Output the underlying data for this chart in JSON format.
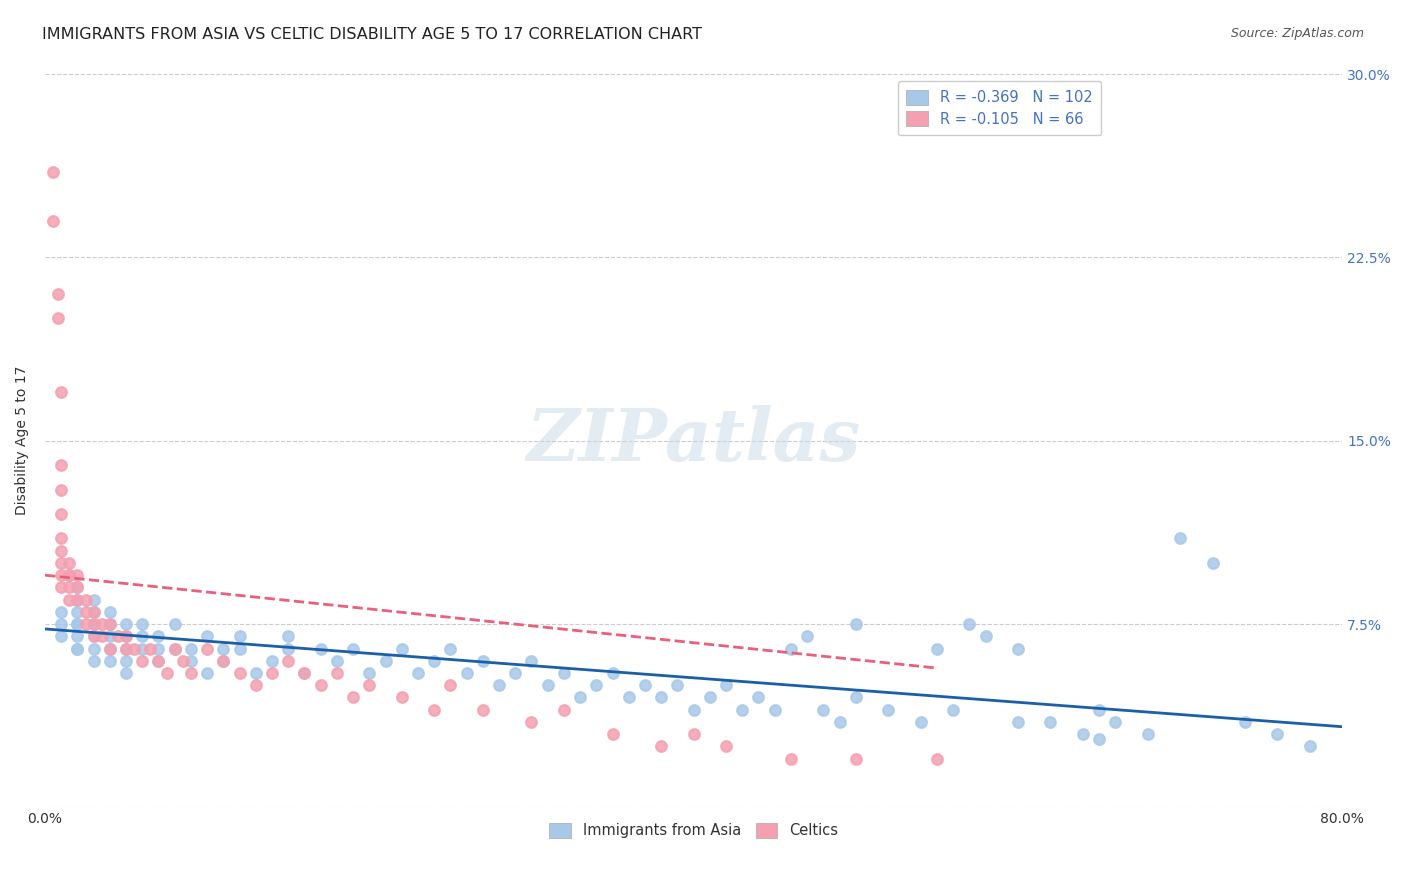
{
  "title": "IMMIGRANTS FROM ASIA VS CELTIC DISABILITY AGE 5 TO 17 CORRELATION CHART",
  "source": "Source: ZipAtlas.com",
  "xlabel": "",
  "ylabel": "Disability Age 5 to 17",
  "xlim": [
    0.0,
    0.8
  ],
  "ylim": [
    0.0,
    0.3
  ],
  "xticks": [
    0.0,
    0.1,
    0.2,
    0.3,
    0.4,
    0.5,
    0.6,
    0.7,
    0.8
  ],
  "xticklabels": [
    "0.0%",
    "",
    "",
    "",
    "",
    "",
    "",
    "",
    "80.0%"
  ],
  "yticks": [
    0.0,
    0.075,
    0.15,
    0.225,
    0.3
  ],
  "yticklabels": [
    "",
    "7.5%",
    "15.0%",
    "22.5%",
    "30.0%"
  ],
  "legend_labels": [
    "Immigrants from Asia",
    "Celtics"
  ],
  "blue_R": "-0.369",
  "blue_N": "102",
  "pink_R": "-0.105",
  "pink_N": "66",
  "blue_color": "#a8c8e8",
  "pink_color": "#f4a0b0",
  "trend_blue": "#1a5fa8",
  "trend_pink": "#e8607a",
  "watermark": "ZIPatlas",
  "watermark_color": "#c8d8e8",
  "blue_scatter_x": [
    0.01,
    0.01,
    0.01,
    0.02,
    0.02,
    0.02,
    0.02,
    0.02,
    0.02,
    0.02,
    0.02,
    0.03,
    0.03,
    0.03,
    0.03,
    0.03,
    0.03,
    0.04,
    0.04,
    0.04,
    0.04,
    0.04,
    0.05,
    0.05,
    0.05,
    0.05,
    0.05,
    0.06,
    0.06,
    0.06,
    0.07,
    0.07,
    0.07,
    0.08,
    0.08,
    0.09,
    0.09,
    0.1,
    0.1,
    0.11,
    0.11,
    0.12,
    0.12,
    0.13,
    0.14,
    0.15,
    0.15,
    0.16,
    0.17,
    0.18,
    0.19,
    0.2,
    0.21,
    0.22,
    0.23,
    0.24,
    0.25,
    0.26,
    0.27,
    0.28,
    0.29,
    0.3,
    0.31,
    0.32,
    0.33,
    0.34,
    0.35,
    0.36,
    0.37,
    0.38,
    0.39,
    0.4,
    0.41,
    0.42,
    0.43,
    0.44,
    0.45,
    0.46,
    0.47,
    0.48,
    0.49,
    0.5,
    0.52,
    0.54,
    0.56,
    0.57,
    0.58,
    0.6,
    0.62,
    0.64,
    0.65,
    0.66,
    0.68,
    0.7,
    0.72,
    0.74,
    0.76,
    0.78,
    0.5,
    0.55,
    0.6,
    0.65
  ],
  "blue_scatter_y": [
    0.07,
    0.075,
    0.08,
    0.065,
    0.07,
    0.075,
    0.08,
    0.085,
    0.09,
    0.075,
    0.065,
    0.07,
    0.075,
    0.065,
    0.06,
    0.08,
    0.085,
    0.07,
    0.065,
    0.075,
    0.06,
    0.08,
    0.07,
    0.065,
    0.075,
    0.06,
    0.055,
    0.07,
    0.065,
    0.075,
    0.065,
    0.06,
    0.07,
    0.065,
    0.075,
    0.065,
    0.06,
    0.07,
    0.055,
    0.065,
    0.06,
    0.07,
    0.065,
    0.055,
    0.06,
    0.065,
    0.07,
    0.055,
    0.065,
    0.06,
    0.065,
    0.055,
    0.06,
    0.065,
    0.055,
    0.06,
    0.065,
    0.055,
    0.06,
    0.05,
    0.055,
    0.06,
    0.05,
    0.055,
    0.045,
    0.05,
    0.055,
    0.045,
    0.05,
    0.045,
    0.05,
    0.04,
    0.045,
    0.05,
    0.04,
    0.045,
    0.04,
    0.065,
    0.07,
    0.04,
    0.035,
    0.045,
    0.04,
    0.035,
    0.04,
    0.075,
    0.07,
    0.065,
    0.035,
    0.03,
    0.04,
    0.035,
    0.03,
    0.11,
    0.1,
    0.035,
    0.03,
    0.025,
    0.075,
    0.065,
    0.035,
    0.028
  ],
  "pink_scatter_x": [
    0.005,
    0.005,
    0.008,
    0.008,
    0.01,
    0.01,
    0.01,
    0.01,
    0.01,
    0.01,
    0.01,
    0.01,
    0.01,
    0.015,
    0.015,
    0.015,
    0.015,
    0.015,
    0.02,
    0.02,
    0.02,
    0.025,
    0.025,
    0.025,
    0.03,
    0.03,
    0.03,
    0.035,
    0.035,
    0.04,
    0.04,
    0.045,
    0.05,
    0.05,
    0.055,
    0.06,
    0.065,
    0.07,
    0.075,
    0.08,
    0.085,
    0.09,
    0.1,
    0.11,
    0.12,
    0.13,
    0.14,
    0.15,
    0.16,
    0.17,
    0.18,
    0.19,
    0.2,
    0.22,
    0.24,
    0.25,
    0.27,
    0.3,
    0.32,
    0.35,
    0.38,
    0.4,
    0.42,
    0.46,
    0.5,
    0.55
  ],
  "pink_scatter_y": [
    0.26,
    0.24,
    0.21,
    0.2,
    0.17,
    0.14,
    0.13,
    0.12,
    0.11,
    0.105,
    0.1,
    0.095,
    0.09,
    0.085,
    0.09,
    0.095,
    0.1,
    0.095,
    0.085,
    0.09,
    0.095,
    0.085,
    0.075,
    0.08,
    0.075,
    0.07,
    0.08,
    0.07,
    0.075,
    0.065,
    0.075,
    0.07,
    0.065,
    0.07,
    0.065,
    0.06,
    0.065,
    0.06,
    0.055,
    0.065,
    0.06,
    0.055,
    0.065,
    0.06,
    0.055,
    0.05,
    0.055,
    0.06,
    0.055,
    0.05,
    0.055,
    0.045,
    0.05,
    0.045,
    0.04,
    0.05,
    0.04,
    0.035,
    0.04,
    0.03,
    0.025,
    0.03,
    0.025,
    0.02,
    0.02,
    0.02
  ],
  "blue_trend_x": [
    0.0,
    0.8
  ],
  "blue_trend_y": [
    0.073,
    0.033
  ],
  "pink_trend_x": [
    0.0,
    0.55
  ],
  "pink_trend_y": [
    0.095,
    0.057
  ]
}
